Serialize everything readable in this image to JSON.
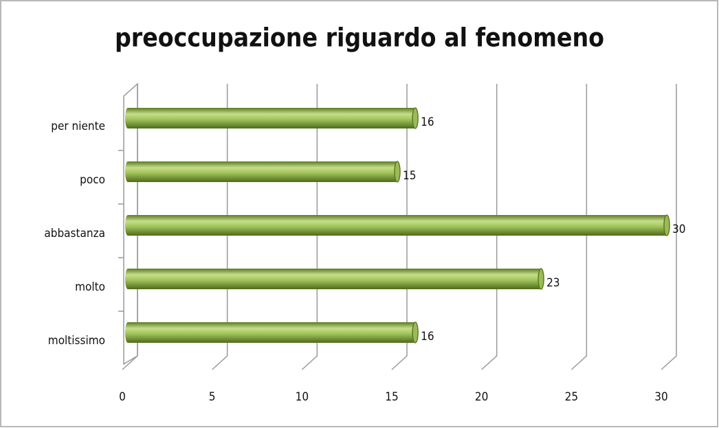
{
  "chart_data": {
    "type": "bar",
    "orientation": "horizontal",
    "title": "preoccupazione riguardo al fenomeno",
    "categories": [
      "per niente",
      "poco",
      "abbastanza",
      "molto",
      "moltissimo"
    ],
    "values": [
      16,
      15,
      30,
      23,
      16
    ],
    "color": "#9bbb59",
    "xlim": [
      0,
      30
    ],
    "xticks": [
      0,
      5,
      10,
      15,
      20,
      25,
      30
    ],
    "grid": true
  }
}
